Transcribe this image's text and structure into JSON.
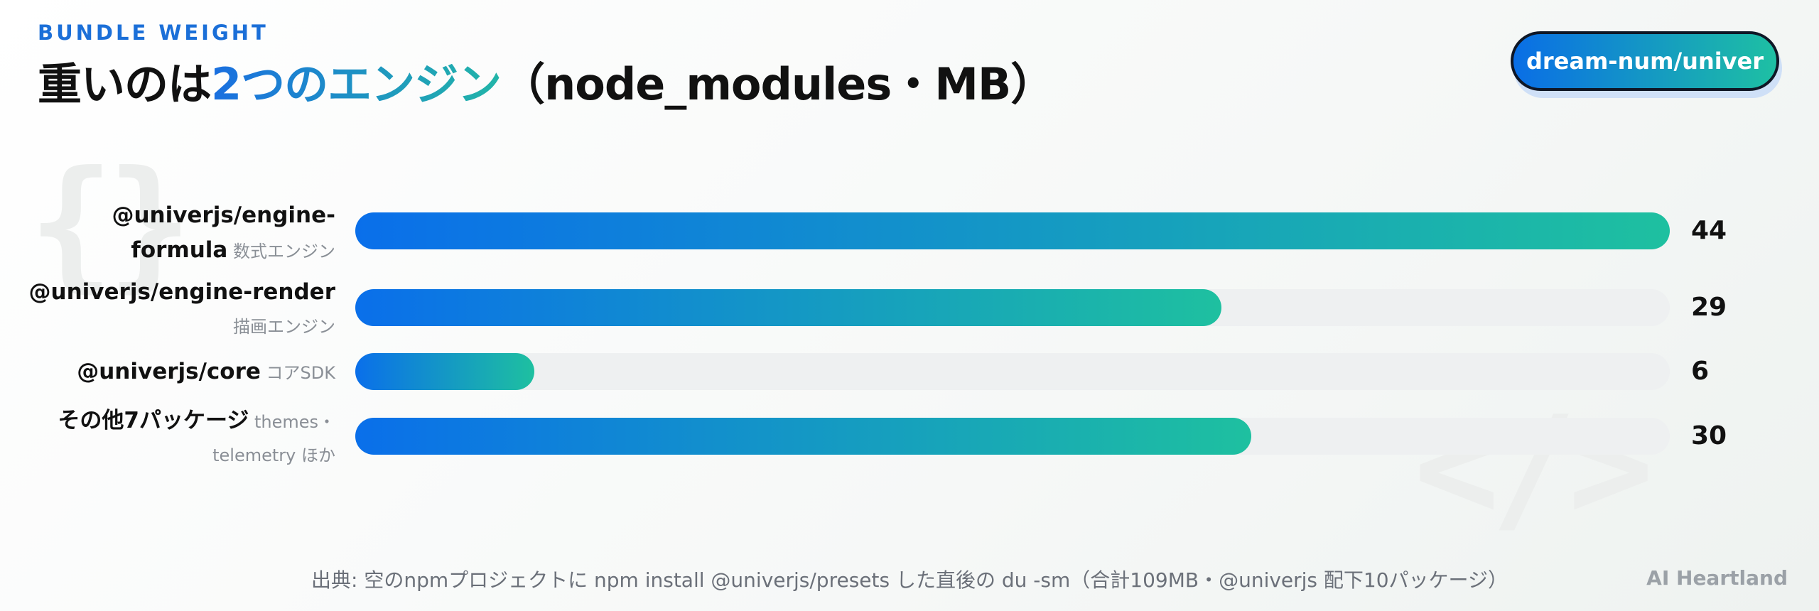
{
  "header": {
    "eyebrow": "BUNDLE WEIGHT",
    "title_pre": "重いのは",
    "title_highlight": "2つのエンジン",
    "title_post": "（node_modules・MB）"
  },
  "badge": {
    "label": "dream-num/univer"
  },
  "decor": {
    "braces": "{}",
    "tag": "</>"
  },
  "chart_data": {
    "type": "bar",
    "orientation": "horizontal",
    "title": "重いのは2つのエンジン（node_modules・MB）",
    "categories": [
      "@univerjs/engine-formula",
      "@univerjs/engine-render",
      "@univerjs/core",
      "その他7パッケージ"
    ],
    "category_notes": [
      "数式エンジン",
      "描画エンジン",
      "コアSDK",
      "themes・telemetry ほか"
    ],
    "values": [
      44,
      29,
      6,
      30
    ],
    "unit": "MB",
    "xlim": [
      0,
      44
    ],
    "grid": false,
    "colors": {
      "start": "#0a6fea",
      "end": "#1ec0a0",
      "track": "#eef0f1"
    }
  },
  "footer": {
    "source": "出典: 空のnpmプロジェクトに npm install @univerjs/presets した直後の du -sm（合計109MB・@univerjs 配下10パッケージ）"
  },
  "brand": "AI Heartland"
}
